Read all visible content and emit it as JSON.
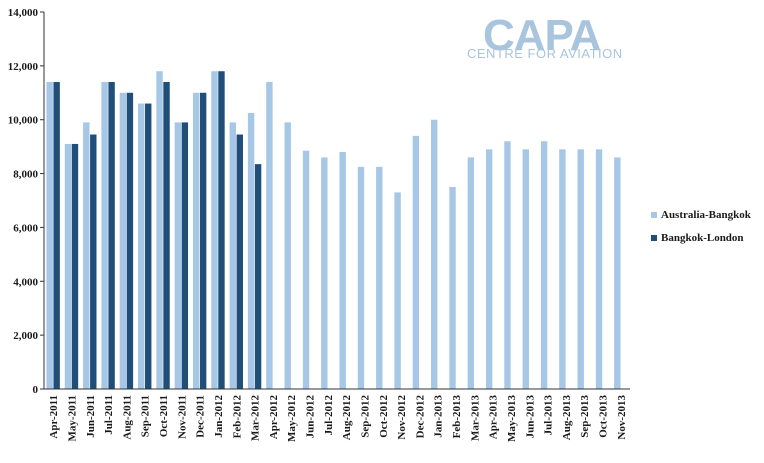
{
  "logo": {
    "main": "CAPA",
    "sub": "CENTRE FOR AVIATION"
  },
  "colors": {
    "australia_bangkok": "#a7c7e7",
    "bangkok_london": "#1f4e79",
    "axis": "#333333"
  },
  "chart_data": {
    "type": "bar",
    "title": "",
    "xlabel": "",
    "ylabel": "",
    "ylim": [
      0,
      14000
    ],
    "yticks": [
      0,
      2000,
      4000,
      6000,
      8000,
      10000,
      12000,
      14000
    ],
    "ytick_labels": [
      "0",
      "2,000",
      "4,000",
      "6,000",
      "8,000",
      "10,000",
      "12,000",
      "14,000"
    ],
    "grid": false,
    "legend_position": "right",
    "categories": [
      "Apr-2011",
      "May-2011",
      "Jun-2011",
      "Jul-2011",
      "Aug-2011",
      "Sep-2011",
      "Oct-2011",
      "Nov-2011",
      "Dec-2011",
      "Jan-2012",
      "Feb-2012",
      "Mar-2012",
      "Apr-2012",
      "May-2012",
      "Jun-2012",
      "Jul-2012",
      "Aug-2012",
      "Sep-2012",
      "Oct-2012",
      "Nov-2012",
      "Dec-2012",
      "Jan-2013",
      "Feb-2013",
      "Mar-2013",
      "Apr-2013",
      "May-2013",
      "Jun-2013",
      "Jul-2013",
      "Aug-2013",
      "Sep-2013",
      "Oct-2013",
      "Nov-2013"
    ],
    "series": [
      {
        "name": "Australia-Bangkok",
        "color": "#a7c7e7",
        "values": [
          11400,
          9100,
          9900,
          11400,
          11000,
          10600,
          11800,
          9900,
          11000,
          11800,
          9900,
          10250,
          11400,
          9900,
          8850,
          8600,
          8800,
          8250,
          8250,
          7300,
          9400,
          10000,
          7500,
          8600,
          8900,
          9200,
          8900,
          9200,
          8900,
          8900,
          8900,
          8600
        ]
      },
      {
        "name": "Bangkok-London",
        "color": "#1f4e79",
        "values": [
          11400,
          9100,
          9450,
          11400,
          11000,
          10600,
          11400,
          9900,
          11000,
          11800,
          9450,
          8350,
          null,
          null,
          null,
          null,
          null,
          null,
          null,
          null,
          null,
          null,
          null,
          null,
          null,
          null,
          null,
          null,
          null,
          null,
          null,
          null
        ]
      }
    ]
  }
}
